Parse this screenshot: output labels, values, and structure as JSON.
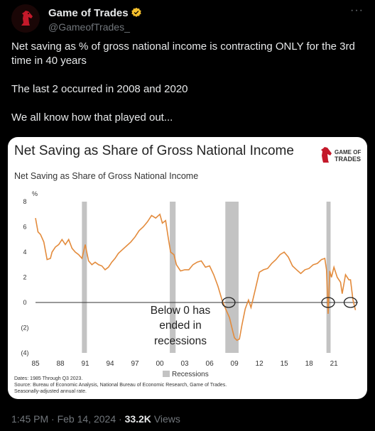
{
  "tweet": {
    "author_name": "Game of Trades",
    "handle": "@GameofTrades_",
    "more_label": "···",
    "paragraphs": [
      "Net saving as % of gross national income is contracting ONLY for the 3rd time in 40 years",
      "The last 2 occurred in 2008 and 2020",
      "We all know how that played out..."
    ],
    "time": "1:45 PM",
    "separator": "·",
    "date": "Feb 14, 2024",
    "views_count": "33.2K",
    "views_label": "Views"
  },
  "colors": {
    "line": "#e38b3c",
    "recession": "#c3c3c3",
    "badge": "#f7c02d"
  },
  "chart_data": {
    "type": "line",
    "title": "Net Saving as Share of Gross National Income",
    "ylabel_title": "Net Saving as Share of Gross National Income",
    "unit": "%",
    "logo_line1": "GAME OF",
    "logo_line2": "TRADES",
    "xlim": [
      1985,
      2023.9
    ],
    "ylim": [
      -4,
      8
    ],
    "y_ticks": [
      8,
      6,
      4,
      2,
      0,
      -2,
      -4
    ],
    "y_tick_labels": [
      "8",
      "6",
      "4",
      "2",
      "0",
      "(2)",
      "(4)"
    ],
    "x_ticks": [
      1985,
      1988,
      1991,
      1994,
      1997,
      2000,
      2003,
      2006,
      2009,
      2012,
      2015,
      2018,
      2021
    ],
    "x_tick_labels": [
      "85",
      "88",
      "91",
      "94",
      "97",
      "00",
      "03",
      "06",
      "09",
      "12",
      "15",
      "18",
      "21"
    ],
    "recessions": [
      [
        1990.6,
        1991.2
      ],
      [
        2001.2,
        2001.9
      ],
      [
        2007.9,
        2009.5
      ],
      [
        2020.1,
        2020.6
      ]
    ],
    "legend": "Recessions",
    "annotation": [
      "Below 0 has",
      "ended in",
      "recessions"
    ],
    "circles": [
      [
        2008.3,
        0
      ],
      [
        2020.3,
        0
      ],
      [
        2023.0,
        0
      ]
    ],
    "notes": [
      "Dates: 1985 Through Q3 2023.",
      "Source: Bureau of Economic Analysis, National Bureau of Economic Research, Game of Trades.",
      "Seasonally-adjusted annual rate."
    ],
    "series": [
      {
        "x": [
          1985.0,
          1985.3,
          1985.6,
          1986.0,
          1986.4,
          1986.8,
          1987.0,
          1987.4,
          1987.8,
          1988.2,
          1988.6,
          1989.0,
          1989.4,
          1989.8,
          1990.2,
          1990.6,
          1991.0,
          1991.4,
          1991.8,
          1992.2,
          1992.6,
          1993.0,
          1993.4,
          1993.8,
          1994.2,
          1994.6,
          1995.0,
          1995.5,
          1996.0,
          1996.5,
          1997.0,
          1997.5,
          1998.0,
          1998.5,
          1999.0,
          1999.5,
          2000.0,
          2000.3,
          2000.7,
          2001.0,
          2001.3,
          2001.7,
          2002.0,
          2002.5,
          2003.0,
          2003.5,
          2004.0,
          2004.5,
          2005.0,
          2005.5,
          2006.0,
          2006.5,
          2007.0,
          2007.5,
          2008.0,
          2008.4,
          2008.8,
          2009.0,
          2009.3,
          2009.6,
          2009.9,
          2010.3,
          2010.7,
          2011.0,
          2011.5,
          2012.0,
          2012.5,
          2013.0,
          2013.5,
          2014.0,
          2014.5,
          2015.0,
          2015.5,
          2016.0,
          2016.5,
          2017.0,
          2017.5,
          2018.0,
          2018.5,
          2019.0,
          2019.5,
          2019.9,
          2020.1,
          2020.3,
          2020.5,
          2020.7,
          2021.0,
          2021.4,
          2021.8,
          2022.0,
          2022.4,
          2022.8,
          2023.0,
          2023.3,
          2023.6
        ],
        "y": [
          6.7,
          5.6,
          5.4,
          4.8,
          3.4,
          3.5,
          4.0,
          4.4,
          4.6,
          5.0,
          4.6,
          5.0,
          4.3,
          4.0,
          3.8,
          3.5,
          4.6,
          3.3,
          3.0,
          3.2,
          3.0,
          2.9,
          2.6,
          2.8,
          3.2,
          3.5,
          3.9,
          4.2,
          4.5,
          4.8,
          5.2,
          5.7,
          6.0,
          6.4,
          6.9,
          6.7,
          7.0,
          6.3,
          6.5,
          5.2,
          4.0,
          3.8,
          3.0,
          2.5,
          2.6,
          2.6,
          3.0,
          3.2,
          3.3,
          2.8,
          2.9,
          2.2,
          1.3,
          0.2,
          -0.6,
          -1.2,
          -2.3,
          -2.8,
          -3.0,
          -2.9,
          -1.8,
          -0.5,
          0.2,
          -0.4,
          1.0,
          2.4,
          2.6,
          2.7,
          3.1,
          3.4,
          3.8,
          4.0,
          3.6,
          2.9,
          2.6,
          2.3,
          2.6,
          2.7,
          3.0,
          3.1,
          3.4,
          3.5,
          2.6,
          -0.9,
          2.5,
          2.0,
          2.8,
          2.0,
          1.6,
          0.7,
          2.2,
          1.8,
          1.8,
          0.2,
          -0.6
        ]
      }
    ]
  }
}
